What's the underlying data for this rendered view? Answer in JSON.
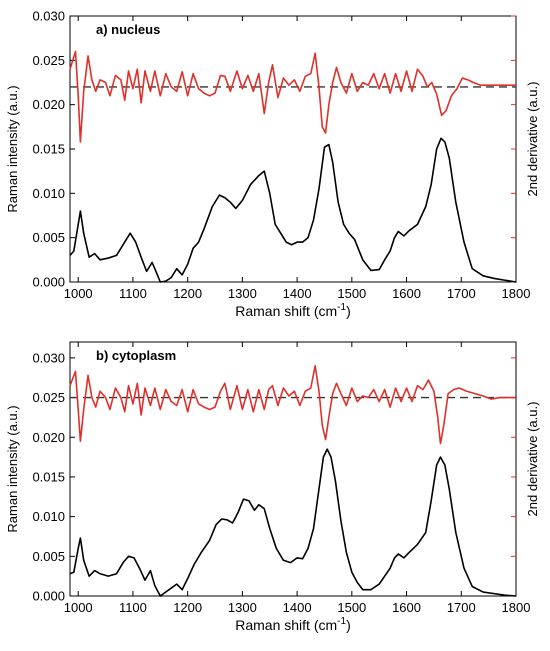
{
  "chart_data": [
    {
      "type": "line",
      "title": "a) nucleus",
      "xlabel_main": "Raman shift (cm",
      "xlabel_sup": "-1",
      "xlabel_end": ")",
      "ylabel": "Raman intensity (a.u.)",
      "y2label": "2nd derivative (a.u.)",
      "xlim": [
        985,
        1800
      ],
      "ylim": [
        0,
        0.03
      ],
      "xticks": [
        "1000",
        "1100",
        "1200",
        "1300",
        "1400",
        "1500",
        "1600",
        "1700",
        "1800"
      ],
      "yticks": [
        "0.000",
        "0.005",
        "0.010",
        "0.015",
        "0.020",
        "0.025",
        "0.030"
      ],
      "baseline_y": 0.022,
      "colors": {
        "spectrum": "#000000",
        "derivative": "#e0302a",
        "baseline": "#333333"
      },
      "series": [
        {
          "role": "spectrum",
          "x": [
            985,
            992,
            1000,
            1004,
            1010,
            1020,
            1030,
            1040,
            1055,
            1070,
            1085,
            1095,
            1105,
            1115,
            1125,
            1135,
            1140,
            1150,
            1160,
            1170,
            1180,
            1190,
            1200,
            1210,
            1220,
            1230,
            1245,
            1258,
            1268,
            1278,
            1288,
            1300,
            1315,
            1330,
            1340,
            1350,
            1360,
            1370,
            1380,
            1390,
            1400,
            1410,
            1420,
            1430,
            1440,
            1450,
            1458,
            1465,
            1475,
            1485,
            1495,
            1505,
            1520,
            1535,
            1550,
            1560,
            1570,
            1578,
            1585,
            1595,
            1605,
            1620,
            1635,
            1645,
            1655,
            1663,
            1670,
            1678,
            1690,
            1705,
            1720,
            1740,
            1760,
            1780,
            1800
          ],
          "y": [
            0.003,
            0.0035,
            0.0065,
            0.008,
            0.0055,
            0.0028,
            0.0032,
            0.0025,
            0.0027,
            0.003,
            0.0045,
            0.0055,
            0.0045,
            0.0028,
            0.0012,
            0.0022,
            0.0015,
            0.0,
            0.0001,
            0.0005,
            0.0015,
            0.0008,
            0.002,
            0.0038,
            0.0045,
            0.006,
            0.0085,
            0.0098,
            0.0095,
            0.009,
            0.0083,
            0.0092,
            0.011,
            0.012,
            0.0125,
            0.01,
            0.0065,
            0.0055,
            0.0045,
            0.0042,
            0.0045,
            0.0045,
            0.005,
            0.007,
            0.0105,
            0.0152,
            0.0155,
            0.0135,
            0.009,
            0.0065,
            0.0055,
            0.0048,
            0.0025,
            0.0013,
            0.0014,
            0.0025,
            0.0035,
            0.005,
            0.0057,
            0.0052,
            0.0058,
            0.0065,
            0.0085,
            0.011,
            0.015,
            0.0162,
            0.0158,
            0.014,
            0.009,
            0.0045,
            0.0015,
            0.0007,
            0.0004,
            0.0002,
            0.0
          ]
        },
        {
          "role": "derivative",
          "x": [
            985,
            995,
            1000,
            1004,
            1010,
            1018,
            1025,
            1032,
            1040,
            1050,
            1058,
            1068,
            1078,
            1085,
            1092,
            1100,
            1108,
            1115,
            1122,
            1132,
            1140,
            1150,
            1160,
            1170,
            1180,
            1190,
            1200,
            1210,
            1220,
            1230,
            1240,
            1250,
            1260,
            1268,
            1278,
            1290,
            1300,
            1310,
            1320,
            1330,
            1340,
            1348,
            1355,
            1365,
            1375,
            1385,
            1395,
            1405,
            1415,
            1425,
            1433,
            1440,
            1446,
            1452,
            1458,
            1465,
            1472,
            1480,
            1490,
            1500,
            1510,
            1520,
            1530,
            1540,
            1550,
            1560,
            1570,
            1580,
            1590,
            1600,
            1610,
            1620,
            1630,
            1638,
            1646,
            1655,
            1664,
            1672,
            1682,
            1692,
            1702,
            1712,
            1722,
            1735,
            1750,
            1765,
            1780,
            1800
          ],
          "y": [
            0.024,
            0.026,
            0.021,
            0.0158,
            0.0215,
            0.0255,
            0.0228,
            0.0215,
            0.0228,
            0.0225,
            0.021,
            0.0233,
            0.0228,
            0.0205,
            0.0238,
            0.0218,
            0.024,
            0.0202,
            0.0238,
            0.0215,
            0.0238,
            0.021,
            0.0235,
            0.022,
            0.0215,
            0.0237,
            0.021,
            0.0235,
            0.0218,
            0.0213,
            0.021,
            0.0213,
            0.0233,
            0.0232,
            0.0215,
            0.0238,
            0.0218,
            0.0233,
            0.0215,
            0.0235,
            0.019,
            0.0225,
            0.0245,
            0.0208,
            0.023,
            0.0222,
            0.0228,
            0.0215,
            0.0232,
            0.0235,
            0.0258,
            0.022,
            0.0175,
            0.0168,
            0.02,
            0.0225,
            0.0242,
            0.0225,
            0.0213,
            0.0235,
            0.0215,
            0.0225,
            0.0222,
            0.0235,
            0.0218,
            0.0235,
            0.0213,
            0.0235,
            0.0215,
            0.0238,
            0.0215,
            0.024,
            0.0232,
            0.022,
            0.0225,
            0.0212,
            0.0188,
            0.0193,
            0.021,
            0.0218,
            0.023,
            0.0228,
            0.0225,
            0.0222,
            0.0222,
            0.0222,
            0.0222,
            0.0222
          ]
        }
      ]
    },
    {
      "type": "line",
      "title": "b) cytoplasm",
      "xlabel_main": "Raman shift (cm",
      "xlabel_sup": "-1",
      "xlabel_end": ")",
      "ylabel": "Raman intensity (a.u.)",
      "y2label": "2nd derivative (a.u.)",
      "xlim": [
        985,
        1800
      ],
      "ylim": [
        0,
        0.032
      ],
      "xticks": [
        "1000",
        "1100",
        "1200",
        "1300",
        "1400",
        "1500",
        "1600",
        "1700",
        "1800"
      ],
      "yticks": [
        "0.000",
        "0.005",
        "0.010",
        "0.015",
        "0.020",
        "0.025",
        "0.030"
      ],
      "baseline_y": 0.025,
      "colors": {
        "spectrum": "#000000",
        "derivative": "#e0302a",
        "baseline": "#333333"
      },
      "series": [
        {
          "role": "spectrum",
          "x": [
            985,
            992,
            1000,
            1004,
            1010,
            1020,
            1030,
            1040,
            1055,
            1070,
            1082,
            1092,
            1102,
            1112,
            1122,
            1132,
            1140,
            1150,
            1160,
            1170,
            1180,
            1190,
            1200,
            1212,
            1225,
            1240,
            1252,
            1262,
            1272,
            1282,
            1292,
            1302,
            1312,
            1322,
            1330,
            1340,
            1350,
            1362,
            1375,
            1388,
            1400,
            1410,
            1420,
            1430,
            1440,
            1448,
            1455,
            1462,
            1470,
            1480,
            1490,
            1500,
            1510,
            1520,
            1535,
            1550,
            1560,
            1570,
            1578,
            1585,
            1595,
            1605,
            1620,
            1635,
            1645,
            1655,
            1662,
            1670,
            1678,
            1690,
            1705,
            1720,
            1740,
            1760,
            1780,
            1800
          ],
          "y": [
            0.0028,
            0.003,
            0.006,
            0.0073,
            0.0045,
            0.0025,
            0.0032,
            0.0028,
            0.0025,
            0.0028,
            0.0042,
            0.005,
            0.0048,
            0.0035,
            0.002,
            0.0032,
            0.0013,
            0.0,
            0.0005,
            0.001,
            0.0015,
            0.0008,
            0.0022,
            0.004,
            0.0055,
            0.007,
            0.009,
            0.0097,
            0.0096,
            0.0092,
            0.0105,
            0.0122,
            0.012,
            0.0108,
            0.0115,
            0.011,
            0.0085,
            0.006,
            0.0045,
            0.0042,
            0.0048,
            0.0047,
            0.006,
            0.0085,
            0.0135,
            0.0175,
            0.0185,
            0.0175,
            0.0145,
            0.0095,
            0.0055,
            0.003,
            0.0017,
            0.0008,
            0.0008,
            0.0015,
            0.0025,
            0.0035,
            0.0048,
            0.0053,
            0.0048,
            0.0055,
            0.0065,
            0.008,
            0.012,
            0.0165,
            0.0175,
            0.0165,
            0.0135,
            0.008,
            0.0035,
            0.0012,
            0.0005,
            0.0003,
            0.0001,
            0.0
          ]
        },
        {
          "role": "derivative",
          "x": [
            985,
            995,
            1000,
            1004,
            1010,
            1018,
            1025,
            1032,
            1040,
            1050,
            1058,
            1068,
            1078,
            1085,
            1092,
            1100,
            1108,
            1115,
            1122,
            1132,
            1140,
            1150,
            1160,
            1170,
            1180,
            1190,
            1200,
            1210,
            1220,
            1230,
            1240,
            1250,
            1260,
            1268,
            1278,
            1290,
            1300,
            1310,
            1320,
            1330,
            1340,
            1348,
            1355,
            1365,
            1375,
            1385,
            1395,
            1405,
            1415,
            1425,
            1433,
            1440,
            1446,
            1452,
            1458,
            1465,
            1472,
            1480,
            1490,
            1500,
            1510,
            1520,
            1530,
            1540,
            1550,
            1560,
            1570,
            1580,
            1590,
            1600,
            1610,
            1620,
            1630,
            1640,
            1650,
            1657,
            1662,
            1668,
            1676,
            1686,
            1696,
            1710,
            1725,
            1740,
            1755,
            1770,
            1785,
            1800
          ],
          "y": [
            0.0265,
            0.0283,
            0.0235,
            0.0195,
            0.0235,
            0.0278,
            0.025,
            0.0238,
            0.0258,
            0.025,
            0.0235,
            0.0262,
            0.025,
            0.0232,
            0.0265,
            0.0242,
            0.0268,
            0.0228,
            0.0262,
            0.024,
            0.0262,
            0.0235,
            0.026,
            0.0245,
            0.024,
            0.026,
            0.0232,
            0.026,
            0.0242,
            0.0238,
            0.0235,
            0.0238,
            0.0258,
            0.0268,
            0.0235,
            0.0265,
            0.0235,
            0.026,
            0.0232,
            0.026,
            0.0235,
            0.026,
            0.0265,
            0.024,
            0.0262,
            0.0252,
            0.0258,
            0.024,
            0.0258,
            0.0262,
            0.029,
            0.0258,
            0.0215,
            0.0197,
            0.0225,
            0.0255,
            0.0268,
            0.0255,
            0.024,
            0.0262,
            0.0245,
            0.0252,
            0.025,
            0.026,
            0.0245,
            0.026,
            0.0238,
            0.0262,
            0.0245,
            0.0262,
            0.0245,
            0.0265,
            0.026,
            0.0272,
            0.0258,
            0.0225,
            0.0192,
            0.0215,
            0.0255,
            0.026,
            0.0262,
            0.0258,
            0.0255,
            0.0252,
            0.0248,
            0.025,
            0.025,
            0.025
          ]
        }
      ]
    }
  ]
}
